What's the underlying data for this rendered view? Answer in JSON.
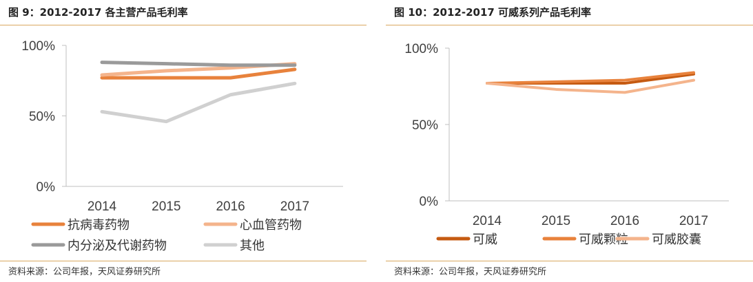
{
  "charts": [
    {
      "figure_title": "图 9：2012-2017 各主营产品毛利率",
      "source": "资料来源：公司年报，天风证券研究所",
      "chart_data": {
        "type": "line",
        "title": "图 9：2012-2017 各主营产品毛利率",
        "xlabel": "",
        "ylabel": "",
        "categories": [
          "2014",
          "2015",
          "2016",
          "2017"
        ],
        "y_ticks": [
          "0%",
          "50%",
          "100%"
        ],
        "ylim": [
          0,
          100
        ],
        "legend_position": "bottom",
        "grid": false,
        "series": [
          {
            "name": "抗病毒药物",
            "color": "#e8823c",
            "values": [
              77,
              77,
              77,
              83
            ]
          },
          {
            "name": "心血管药物",
            "color": "#f4b48c",
            "values": [
              79,
              82,
              84,
              87
            ]
          },
          {
            "name": "内分泌及代谢药物",
            "color": "#9a9a9a",
            "values": [
              88,
              87,
              86,
              86
            ]
          },
          {
            "name": "其他",
            "color": "#d0d0d0",
            "values": [
              53,
              46,
              65,
              73
            ]
          }
        ]
      }
    },
    {
      "figure_title": "图 10：2012-2017 可威系列产品毛利率",
      "source": "资料来源：公司年报，天风证券研究所",
      "chart_data": {
        "type": "line",
        "title": "图 10：2012-2017 可威系列产品毛利率",
        "xlabel": "",
        "ylabel": "",
        "categories": [
          "2014",
          "2015",
          "2016",
          "2017"
        ],
        "y_ticks": [
          "0%",
          "50%",
          "100%"
        ],
        "ylim": [
          0,
          100
        ],
        "legend_position": "bottom",
        "grid": false,
        "series": [
          {
            "name": "可威",
            "color": "#c55a11",
            "values": [
              77,
              77,
              77,
              83
            ]
          },
          {
            "name": "可威颗粒",
            "color": "#e8823c",
            "values": [
              77,
              78,
              79,
              84
            ]
          },
          {
            "name": "可威胶囊",
            "color": "#f4b48c",
            "values": [
              77,
              73,
              71,
              79
            ]
          }
        ]
      }
    }
  ]
}
